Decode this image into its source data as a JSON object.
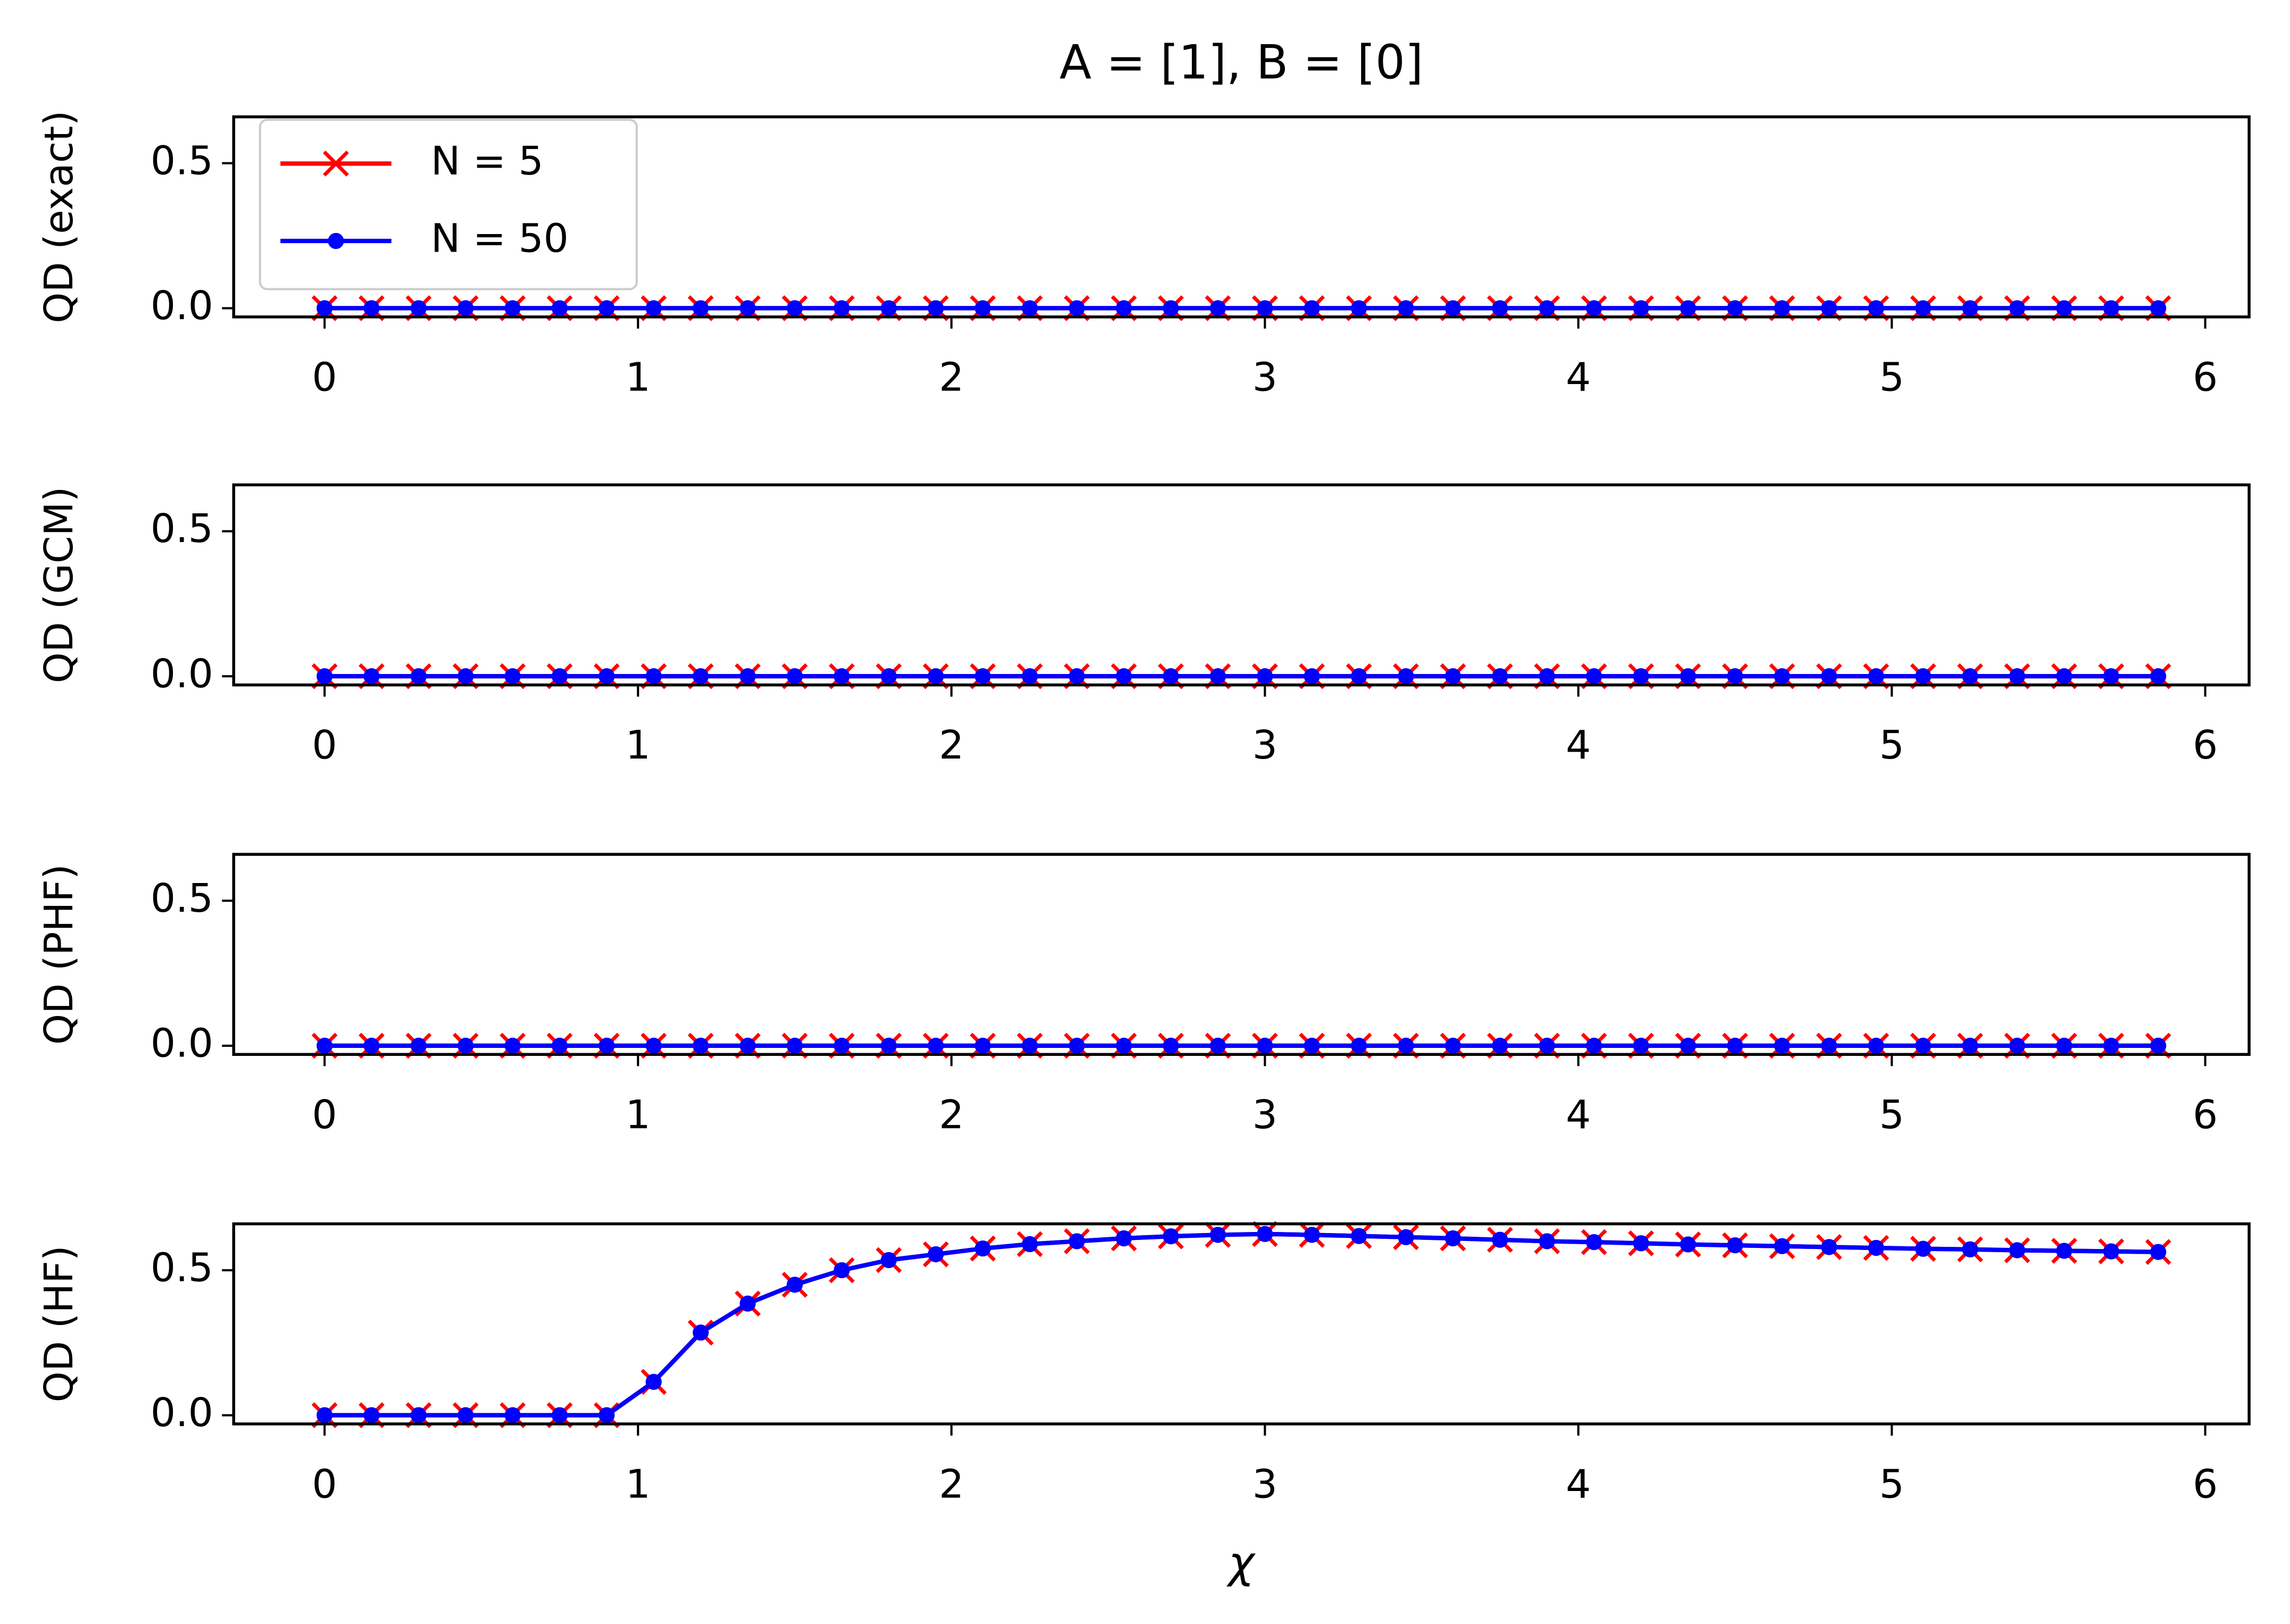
{
  "chart_data": [
    {
      "type": "line",
      "title": "A = [1], B = [0]",
      "ylabel": "QD (exact)",
      "legend": "upper left",
      "x": [
        0,
        0.15,
        0.3,
        0.45,
        0.6,
        0.75,
        0.9,
        1.05,
        1.2,
        1.35,
        1.5,
        1.65,
        1.8,
        1.95,
        2.1,
        2.25,
        2.4,
        2.55,
        2.7,
        2.85,
        3,
        3.15,
        3.3,
        3.45,
        3.6,
        3.75,
        3.9,
        4.05,
        4.2,
        4.35,
        4.5,
        4.65,
        4.8,
        4.95,
        5.1,
        5.25,
        5.4,
        5.55,
        5.7,
        5.85
      ],
      "series": [
        {
          "name": "N = 5",
          "color": "#ff0000",
          "marker": "x",
          "values": [
            0,
            0,
            0,
            0,
            0,
            0,
            0,
            0,
            0,
            0,
            0,
            0,
            0,
            0,
            0,
            0,
            0,
            0,
            0,
            0,
            0,
            0,
            0,
            0,
            0,
            0,
            0,
            0,
            0,
            0,
            0,
            0,
            0,
            0,
            0,
            0,
            0,
            0,
            0,
            0
          ]
        },
        {
          "name": "N = 50",
          "color": "#0000ff",
          "marker": "o",
          "values": [
            0,
            0,
            0,
            0,
            0,
            0,
            0,
            0,
            0,
            0,
            0,
            0,
            0,
            0,
            0,
            0,
            0,
            0,
            0,
            0,
            0,
            0,
            0,
            0,
            0,
            0,
            0,
            0,
            0,
            0,
            0,
            0,
            0,
            0,
            0,
            0,
            0,
            0,
            0,
            0
          ]
        }
      ],
      "xlim": [
        -0.29,
        6.14
      ],
      "ylim": [
        -0.03,
        0.66
      ],
      "xticks": [
        0,
        1,
        2,
        3,
        4,
        5,
        6
      ],
      "yticks": [
        {
          "value": 0,
          "label": "0.0"
        },
        {
          "value": 0.5,
          "label": "0.5"
        }
      ]
    },
    {
      "type": "line",
      "ylabel": "QD (GCM)",
      "x": [
        0,
        0.15,
        0.3,
        0.45,
        0.6,
        0.75,
        0.9,
        1.05,
        1.2,
        1.35,
        1.5,
        1.65,
        1.8,
        1.95,
        2.1,
        2.25,
        2.4,
        2.55,
        2.7,
        2.85,
        3,
        3.15,
        3.3,
        3.45,
        3.6,
        3.75,
        3.9,
        4.05,
        4.2,
        4.35,
        4.5,
        4.65,
        4.8,
        4.95,
        5.1,
        5.25,
        5.4,
        5.55,
        5.7,
        5.85
      ],
      "series": [
        {
          "color": "#ff0000",
          "marker": "x",
          "values": [
            0,
            0,
            0,
            0,
            0,
            0,
            0,
            0,
            0,
            0,
            0,
            0,
            0,
            0,
            0,
            0,
            0,
            0,
            0,
            0,
            0,
            0,
            0,
            0,
            0,
            0,
            0,
            0,
            0,
            0,
            0,
            0,
            0,
            0,
            0,
            0,
            0,
            0,
            0,
            0
          ]
        },
        {
          "color": "#0000ff",
          "marker": "o",
          "values": [
            0,
            0,
            0,
            0,
            0,
            0,
            0,
            0,
            0,
            0,
            0,
            0,
            0,
            0,
            0,
            0,
            0,
            0,
            0,
            0,
            0,
            0,
            0,
            0,
            0,
            0,
            0,
            0,
            0,
            0,
            0,
            0,
            0,
            0,
            0,
            0,
            0,
            0,
            0,
            0
          ]
        }
      ],
      "xlim": [
        -0.29,
        6.14
      ],
      "ylim": [
        -0.03,
        0.66
      ],
      "xticks": [
        0,
        1,
        2,
        3,
        4,
        5,
        6
      ],
      "yticks": [
        {
          "value": 0,
          "label": "0.0"
        },
        {
          "value": 0.5,
          "label": "0.5"
        }
      ]
    },
    {
      "type": "line",
      "ylabel": "QD (PHF)",
      "x": [
        0,
        0.15,
        0.3,
        0.45,
        0.6,
        0.75,
        0.9,
        1.05,
        1.2,
        1.35,
        1.5,
        1.65,
        1.8,
        1.95,
        2.1,
        2.25,
        2.4,
        2.55,
        2.7,
        2.85,
        3,
        3.15,
        3.3,
        3.45,
        3.6,
        3.75,
        3.9,
        4.05,
        4.2,
        4.35,
        4.5,
        4.65,
        4.8,
        4.95,
        5.1,
        5.25,
        5.4,
        5.55,
        5.7,
        5.85
      ],
      "series": [
        {
          "color": "#ff0000",
          "marker": "x",
          "values": [
            0,
            0,
            0,
            0,
            0,
            0,
            0,
            0,
            0,
            0,
            0,
            0,
            0,
            0,
            0,
            0,
            0,
            0,
            0,
            0,
            0,
            0,
            0,
            0,
            0,
            0,
            0,
            0,
            0,
            0,
            0,
            0,
            0,
            0,
            0,
            0,
            0,
            0,
            0,
            0
          ]
        },
        {
          "color": "#0000ff",
          "marker": "o",
          "values": [
            0,
            0,
            0,
            0,
            0,
            0,
            0,
            0,
            0,
            0,
            0,
            0,
            0,
            0,
            0,
            0,
            0,
            0,
            0,
            0,
            0,
            0,
            0,
            0,
            0,
            0,
            0,
            0,
            0,
            0,
            0,
            0,
            0,
            0,
            0,
            0,
            0,
            0,
            0,
            0
          ]
        }
      ],
      "xlim": [
        -0.29,
        6.14
      ],
      "ylim": [
        -0.03,
        0.66
      ],
      "xticks": [
        0,
        1,
        2,
        3,
        4,
        5,
        6
      ],
      "yticks": [
        {
          "value": 0,
          "label": "0.0"
        },
        {
          "value": 0.5,
          "label": "0.5"
        }
      ]
    },
    {
      "type": "line",
      "ylabel": "QD (HF)",
      "xlabel": "χ",
      "x": [
        0,
        0.15,
        0.3,
        0.45,
        0.6,
        0.75,
        0.9,
        1.05,
        1.2,
        1.35,
        1.5,
        1.65,
        1.8,
        1.95,
        2.1,
        2.25,
        2.4,
        2.55,
        2.7,
        2.85,
        3,
        3.15,
        3.3,
        3.45,
        3.6,
        3.75,
        3.9,
        4.05,
        4.2,
        4.35,
        4.5,
        4.65,
        4.8,
        4.95,
        5.1,
        5.25,
        5.4,
        5.55,
        5.7,
        5.85
      ],
      "series": [
        {
          "color": "#ff0000",
          "marker": "x",
          "values": [
            0,
            0,
            0,
            0,
            0,
            0,
            0,
            0.115,
            0.285,
            0.385,
            0.45,
            0.5,
            0.535,
            0.555,
            0.575,
            0.59,
            0.6,
            0.61,
            0.617,
            0.622,
            0.625,
            0.622,
            0.618,
            0.614,
            0.61,
            0.605,
            0.6,
            0.597,
            0.593,
            0.589,
            0.586,
            0.583,
            0.58,
            0.577,
            0.574,
            0.572,
            0.569,
            0.567,
            0.565,
            0.563
          ]
        },
        {
          "color": "#0000ff",
          "marker": "o",
          "values": [
            0,
            0,
            0,
            0,
            0,
            0,
            0,
            0.115,
            0.285,
            0.385,
            0.45,
            0.5,
            0.535,
            0.555,
            0.575,
            0.59,
            0.6,
            0.61,
            0.617,
            0.622,
            0.625,
            0.622,
            0.618,
            0.614,
            0.61,
            0.605,
            0.6,
            0.597,
            0.593,
            0.589,
            0.586,
            0.583,
            0.58,
            0.577,
            0.574,
            0.572,
            0.569,
            0.567,
            0.565,
            0.563
          ]
        }
      ],
      "xlim": [
        -0.29,
        6.14
      ],
      "ylim": [
        -0.03,
        0.66
      ],
      "xticks": [
        0,
        1,
        2,
        3,
        4,
        5,
        6
      ],
      "yticks": [
        {
          "value": 0,
          "label": "0.0"
        },
        {
          "value": 0.5,
          "label": "0.5"
        }
      ]
    }
  ]
}
